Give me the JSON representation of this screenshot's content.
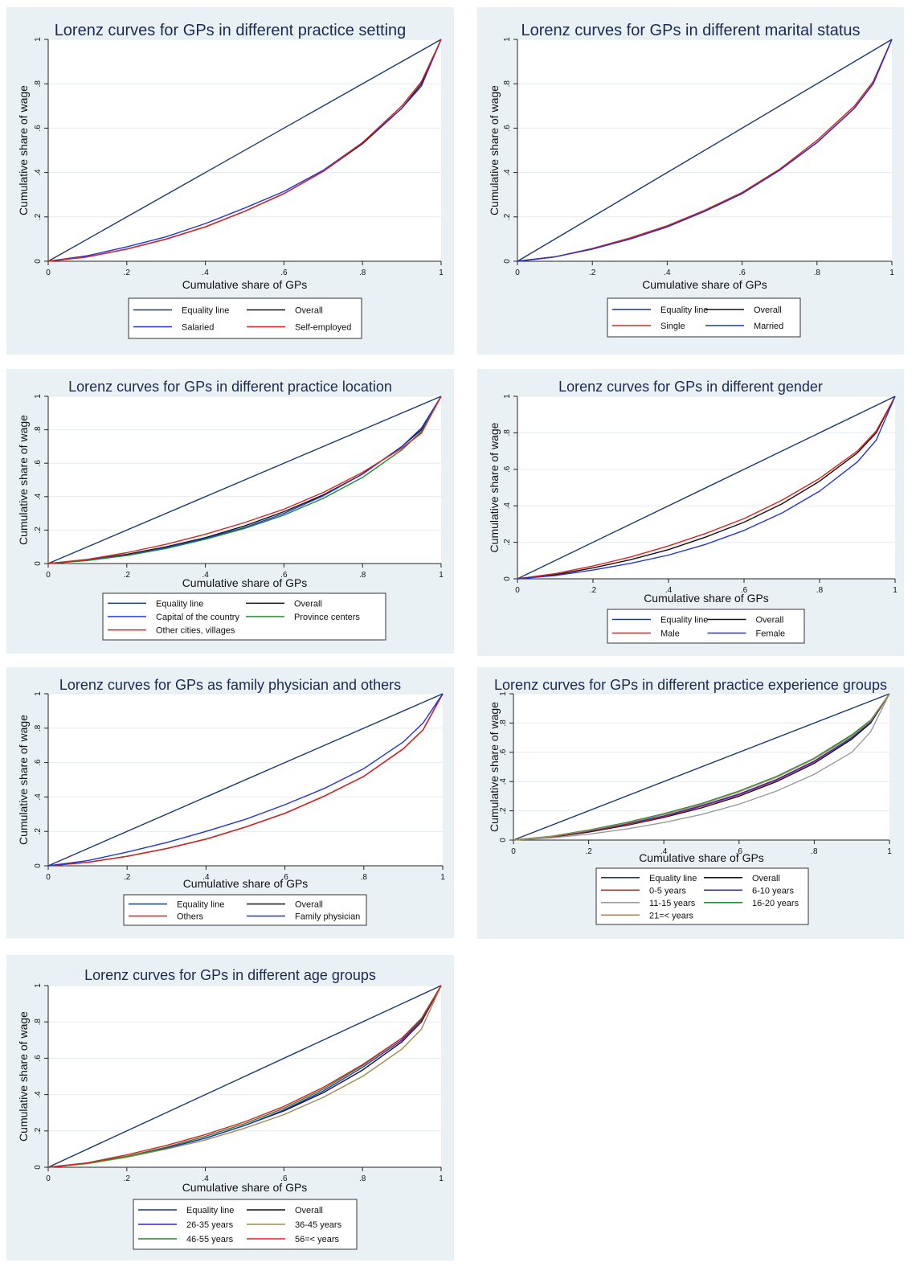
{
  "chart_data": [
    {
      "type": "line",
      "title": "Lorenz curves for GPs in different practice setting",
      "xlabel": "Cumulative share of GPs",
      "ylabel": "Cumulative share of wage",
      "xlim": [
        0,
        1
      ],
      "ylim": [
        0,
        1
      ],
      "ticks": [
        "0",
        ".2",
        ".4",
        ".6",
        ".8",
        "1"
      ],
      "legend_columns": 2,
      "grid": true,
      "series": [
        {
          "name": "Equality line",
          "color": "#1a3a6b",
          "x": [
            0,
            1
          ],
          "y": [
            0,
            1
          ]
        },
        {
          "name": "Overall",
          "color": "#111111",
          "x": [
            0,
            0.1,
            0.2,
            0.3,
            0.4,
            0.5,
            0.6,
            0.7,
            0.8,
            0.9,
            0.95,
            1
          ],
          "y": [
            0,
            0.02,
            0.055,
            0.1,
            0.155,
            0.225,
            0.305,
            0.405,
            0.53,
            0.69,
            0.8,
            1
          ]
        },
        {
          "name": "Salaried",
          "color": "#1f33e0",
          "x": [
            0,
            0.1,
            0.2,
            0.3,
            0.4,
            0.5,
            0.6,
            0.7,
            0.8,
            0.9,
            0.95,
            1
          ],
          "y": [
            0,
            0.025,
            0.065,
            0.11,
            0.17,
            0.24,
            0.315,
            0.41,
            0.535,
            0.69,
            0.79,
            1
          ]
        },
        {
          "name": "Self-employed",
          "color": "#e0201c",
          "x": [
            0,
            0.1,
            0.2,
            0.3,
            0.4,
            0.5,
            0.6,
            0.7,
            0.8,
            0.9,
            0.95,
            1
          ],
          "y": [
            0,
            0.02,
            0.055,
            0.1,
            0.155,
            0.225,
            0.305,
            0.405,
            0.535,
            0.7,
            0.81,
            1
          ]
        }
      ]
    },
    {
      "type": "line",
      "title": "Lorenz curves for GPs in different marital status",
      "xlabel": "Cumulative share of GPs",
      "ylabel": "Cumulative share of wage",
      "xlim": [
        0,
        1
      ],
      "ylim": [
        0,
        1
      ],
      "ticks": [
        "0",
        ".2",
        ".4",
        ".6",
        ".8",
        "1"
      ],
      "legend_columns": 2,
      "grid": true,
      "series": [
        {
          "name": "Equality line",
          "color": "#1a3a6b",
          "x": [
            0,
            1
          ],
          "y": [
            0,
            1
          ]
        },
        {
          "name": "Overall",
          "color": "#111111",
          "x": [
            0,
            0.1,
            0.2,
            0.3,
            0.4,
            0.5,
            0.6,
            0.7,
            0.8,
            0.9,
            0.95,
            1
          ],
          "y": [
            0,
            0.02,
            0.055,
            0.1,
            0.155,
            0.225,
            0.305,
            0.41,
            0.535,
            0.69,
            0.8,
            1
          ]
        },
        {
          "name": "Single",
          "color": "#e0201c",
          "x": [
            0,
            0.1,
            0.2,
            0.3,
            0.4,
            0.5,
            0.6,
            0.7,
            0.8,
            0.9,
            0.95,
            1
          ],
          "y": [
            0,
            0.02,
            0.058,
            0.105,
            0.16,
            0.23,
            0.31,
            0.415,
            0.545,
            0.7,
            0.81,
            1
          ]
        },
        {
          "name": "Married",
          "color": "#1f33e0",
          "x": [
            0,
            0.1,
            0.2,
            0.3,
            0.4,
            0.5,
            0.6,
            0.7,
            0.8,
            0.9,
            0.95,
            1
          ],
          "y": [
            0,
            0.02,
            0.055,
            0.1,
            0.155,
            0.225,
            0.305,
            0.41,
            0.535,
            0.69,
            0.8,
            1
          ]
        }
      ]
    },
    {
      "type": "line",
      "title": "Lorenz curves for GPs in different practice location",
      "xlabel": "Cumulative share of GPs",
      "ylabel": "Cumulative share of wage",
      "xlim": [
        0,
        1
      ],
      "ylim": [
        0,
        1
      ],
      "ticks": [
        "0",
        ".2",
        ".4",
        ".6",
        ".8",
        "1"
      ],
      "legend_columns": 2,
      "grid": true,
      "series": [
        {
          "name": "Equality line",
          "color": "#1a3a6b",
          "x": [
            0,
            1
          ],
          "y": [
            0,
            1
          ]
        },
        {
          "name": "Overall",
          "color": "#111111",
          "x": [
            0,
            0.1,
            0.2,
            0.3,
            0.4,
            0.5,
            0.6,
            0.7,
            0.8,
            0.9,
            0.95,
            1
          ],
          "y": [
            0,
            0.02,
            0.055,
            0.1,
            0.155,
            0.225,
            0.31,
            0.41,
            0.535,
            0.7,
            0.8,
            1
          ]
        },
        {
          "name": "Capital of the country",
          "color": "#1f33e0",
          "x": [
            0,
            0.1,
            0.2,
            0.3,
            0.4,
            0.5,
            0.6,
            0.7,
            0.8,
            0.9,
            0.95,
            1
          ],
          "y": [
            0,
            0.02,
            0.05,
            0.095,
            0.15,
            0.215,
            0.3,
            0.405,
            0.535,
            0.7,
            0.81,
            1
          ]
        },
        {
          "name": "Province centers",
          "color": "#1a8a2a",
          "x": [
            0,
            0.1,
            0.2,
            0.3,
            0.4,
            0.5,
            0.6,
            0.7,
            0.8,
            0.9,
            0.95,
            1
          ],
          "y": [
            0,
            0.018,
            0.048,
            0.09,
            0.145,
            0.21,
            0.29,
            0.39,
            0.515,
            0.68,
            0.79,
            1
          ]
        },
        {
          "name": "Other cities, villages",
          "color": "#e0201c",
          "x": [
            0,
            0.1,
            0.2,
            0.3,
            0.4,
            0.5,
            0.6,
            0.7,
            0.8,
            0.9,
            0.95,
            1
          ],
          "y": [
            0,
            0.025,
            0.065,
            0.115,
            0.175,
            0.245,
            0.325,
            0.425,
            0.545,
            0.69,
            0.78,
            1
          ]
        }
      ]
    },
    {
      "type": "line",
      "title": "Lorenz curves for GPs in different gender",
      "xlabel": "Cumulative share of GPs",
      "ylabel": "Cumulative share of wage",
      "xlim": [
        0,
        1
      ],
      "ylim": [
        0,
        1
      ],
      "ticks": [
        "0",
        ".2",
        ".4",
        ".6",
        ".8",
        "1"
      ],
      "legend_columns": 2,
      "grid": true,
      "series": [
        {
          "name": "Equality line",
          "color": "#1a3a6b",
          "x": [
            0,
            1
          ],
          "y": [
            0,
            1
          ]
        },
        {
          "name": "Overall",
          "color": "#111111",
          "x": [
            0,
            0.1,
            0.2,
            0.3,
            0.4,
            0.5,
            0.6,
            0.7,
            0.8,
            0.9,
            0.95,
            1
          ],
          "y": [
            0,
            0.022,
            0.06,
            0.105,
            0.16,
            0.23,
            0.31,
            0.41,
            0.535,
            0.69,
            0.8,
            1
          ]
        },
        {
          "name": "Male",
          "color": "#e0201c",
          "x": [
            0,
            0.1,
            0.2,
            0.3,
            0.4,
            0.5,
            0.6,
            0.7,
            0.8,
            0.9,
            0.95,
            1
          ],
          "y": [
            0,
            0.028,
            0.07,
            0.12,
            0.18,
            0.25,
            0.33,
            0.43,
            0.55,
            0.7,
            0.81,
            1
          ]
        },
        {
          "name": "Female",
          "color": "#1f33e0",
          "x": [
            0,
            0.1,
            0.2,
            0.3,
            0.4,
            0.5,
            0.6,
            0.7,
            0.8,
            0.9,
            0.95,
            1
          ],
          "y": [
            0,
            0.018,
            0.048,
            0.085,
            0.13,
            0.19,
            0.265,
            0.36,
            0.48,
            0.64,
            0.76,
            1
          ]
        }
      ]
    },
    {
      "type": "line",
      "title": "Lorenz curves for GPs as family physician and others",
      "xlabel": "Cumulative share of GPs",
      "ylabel": "Cumulative share of wage",
      "xlim": [
        0,
        1
      ],
      "ylim": [
        0,
        1
      ],
      "ticks": [
        "0",
        ".2",
        ".4",
        ".6",
        ".8",
        "1"
      ],
      "legend_columns": 2,
      "grid": true,
      "series": [
        {
          "name": "Equality line",
          "color": "#1a3a6b",
          "x": [
            0,
            1
          ],
          "y": [
            0,
            1
          ]
        },
        {
          "name": "Overall",
          "color": "#111111",
          "x": [
            0,
            0.1,
            0.2,
            0.3,
            0.4,
            0.5,
            0.6,
            0.7,
            0.8,
            0.9,
            0.95,
            1
          ],
          "y": [
            0,
            0.02,
            0.055,
            0.1,
            0.155,
            0.225,
            0.305,
            0.405,
            0.52,
            0.68,
            0.79,
            1
          ]
        },
        {
          "name": "Others",
          "color": "#e0201c",
          "x": [
            0,
            0.1,
            0.2,
            0.3,
            0.4,
            0.5,
            0.6,
            0.7,
            0.8,
            0.9,
            0.95,
            1
          ],
          "y": [
            0,
            0.02,
            0.055,
            0.1,
            0.155,
            0.225,
            0.305,
            0.405,
            0.52,
            0.68,
            0.79,
            1
          ]
        },
        {
          "name": "Family physician",
          "color": "#1f33e0",
          "x": [
            0,
            0.1,
            0.2,
            0.3,
            0.4,
            0.5,
            0.6,
            0.7,
            0.8,
            0.9,
            0.95,
            1
          ],
          "y": [
            0,
            0.03,
            0.08,
            0.135,
            0.2,
            0.27,
            0.355,
            0.45,
            0.565,
            0.72,
            0.83,
            1
          ]
        }
      ]
    },
    {
      "type": "line",
      "title": "Lorenz curves for GPs in different practice experience groups",
      "xlabel": "Cumulative share of GPs",
      "ylabel": "Cumulative share of wage",
      "xlim": [
        0,
        1
      ],
      "ylim": [
        0,
        1
      ],
      "ticks": [
        "0",
        ".2",
        ".4",
        ".6",
        ".8",
        "1"
      ],
      "legend_columns": 2,
      "grid": true,
      "series": [
        {
          "name": "Equality line",
          "color": "#1a3a6b",
          "x": [
            0,
            1
          ],
          "y": [
            0,
            1
          ]
        },
        {
          "name": "Overall",
          "color": "#111111",
          "x": [
            0,
            0.1,
            0.2,
            0.3,
            0.4,
            0.5,
            0.6,
            0.7,
            0.8,
            0.9,
            0.95,
            1
          ],
          "y": [
            0,
            0.02,
            0.055,
            0.1,
            0.155,
            0.22,
            0.3,
            0.4,
            0.525,
            0.69,
            0.8,
            1
          ]
        },
        {
          "name": "0-5 years",
          "color": "#e0201c",
          "x": [
            0,
            0.1,
            0.2,
            0.3,
            0.4,
            0.5,
            0.6,
            0.7,
            0.8,
            0.9,
            0.95,
            1
          ],
          "y": [
            0,
            0.022,
            0.06,
            0.105,
            0.16,
            0.23,
            0.31,
            0.41,
            0.535,
            0.7,
            0.81,
            1
          ]
        },
        {
          "name": "6-10 years",
          "color": "#2a2ad0",
          "x": [
            0,
            0.1,
            0.2,
            0.3,
            0.4,
            0.5,
            0.6,
            0.7,
            0.8,
            0.9,
            0.95,
            1
          ],
          "y": [
            0,
            0.024,
            0.062,
            0.11,
            0.165,
            0.235,
            0.315,
            0.415,
            0.54,
            0.7,
            0.81,
            1
          ]
        },
        {
          "name": "11-15 years",
          "color": "#9a9a9a",
          "x": [
            0,
            0.1,
            0.2,
            0.3,
            0.4,
            0.5,
            0.6,
            0.7,
            0.8,
            0.9,
            0.95,
            1
          ],
          "y": [
            0,
            0.015,
            0.04,
            0.075,
            0.12,
            0.175,
            0.245,
            0.335,
            0.45,
            0.6,
            0.74,
            1
          ]
        },
        {
          "name": "16-20 years",
          "color": "#1a8a2a",
          "x": [
            0,
            0.1,
            0.2,
            0.3,
            0.4,
            0.5,
            0.6,
            0.7,
            0.8,
            0.9,
            0.95,
            1
          ],
          "y": [
            0,
            0.026,
            0.068,
            0.12,
            0.18,
            0.25,
            0.335,
            0.435,
            0.56,
            0.72,
            0.82,
            1
          ]
        },
        {
          "name": "21=< years",
          "color": "#a08a50",
          "x": [
            0,
            0.1,
            0.2,
            0.3,
            0.4,
            0.5,
            0.6,
            0.7,
            0.8,
            0.9,
            0.95,
            1
          ],
          "y": [
            0,
            0.025,
            0.065,
            0.115,
            0.175,
            0.245,
            0.33,
            0.43,
            0.555,
            0.71,
            0.815,
            1
          ]
        }
      ]
    },
    {
      "type": "line",
      "title": "Lorenz curves for GPs in different age groups",
      "xlabel": "Cumulative share of GPs",
      "ylabel": "Cumulative share of wage",
      "xlim": [
        0,
        1
      ],
      "ylim": [
        0,
        1
      ],
      "ticks": [
        "0",
        ".2",
        ".4",
        ".6",
        ".8",
        "1"
      ],
      "legend_columns": 2,
      "grid": true,
      "series": [
        {
          "name": "Equality line",
          "color": "#1a3a6b",
          "x": [
            0,
            1
          ],
          "y": [
            0,
            1
          ]
        },
        {
          "name": "Overall",
          "color": "#111111",
          "x": [
            0,
            0.1,
            0.2,
            0.3,
            0.4,
            0.5,
            0.6,
            0.7,
            0.8,
            0.9,
            0.95,
            1
          ],
          "y": [
            0,
            0.022,
            0.058,
            0.105,
            0.16,
            0.23,
            0.31,
            0.41,
            0.535,
            0.69,
            0.8,
            1
          ]
        },
        {
          "name": "26-35 years",
          "color": "#2a2ad0",
          "x": [
            0,
            0.1,
            0.2,
            0.3,
            0.4,
            0.5,
            0.6,
            0.7,
            0.8,
            0.9,
            0.95,
            1
          ],
          "y": [
            0,
            0.022,
            0.06,
            0.105,
            0.16,
            0.23,
            0.315,
            0.42,
            0.55,
            0.7,
            0.81,
            1
          ]
        },
        {
          "name": "36-45 years",
          "color": "#a08a50",
          "x": [
            0,
            0.1,
            0.2,
            0.3,
            0.4,
            0.5,
            0.6,
            0.7,
            0.8,
            0.9,
            0.95,
            1
          ],
          "y": [
            0,
            0.02,
            0.055,
            0.1,
            0.15,
            0.215,
            0.29,
            0.385,
            0.5,
            0.65,
            0.76,
            1
          ]
        },
        {
          "name": "46-55 years",
          "color": "#1a8a2a",
          "x": [
            0,
            0.1,
            0.2,
            0.3,
            0.4,
            0.5,
            0.6,
            0.7,
            0.8,
            0.9,
            0.95,
            1
          ],
          "y": [
            0,
            0.022,
            0.06,
            0.11,
            0.17,
            0.24,
            0.325,
            0.43,
            0.56,
            0.71,
            0.82,
            1
          ]
        },
        {
          "name": "56=< years",
          "color": "#e0201c",
          "x": [
            0,
            0.1,
            0.2,
            0.3,
            0.4,
            0.5,
            0.6,
            0.7,
            0.8,
            0.9,
            0.95,
            1
          ],
          "y": [
            0,
            0.025,
            0.068,
            0.12,
            0.18,
            0.25,
            0.335,
            0.44,
            0.565,
            0.71,
            0.815,
            1
          ]
        }
      ]
    }
  ]
}
